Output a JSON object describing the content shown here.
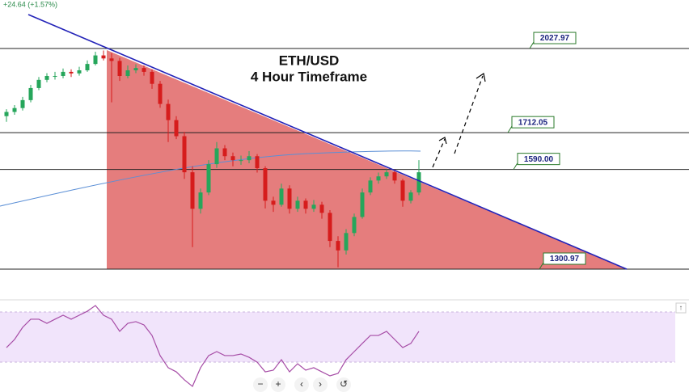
{
  "chart_data": {
    "type": "candlestick",
    "change_label": "+24.64 (+1.57%)",
    "title": "ETH/USD",
    "subtitle": "4 Hour Timeframe",
    "log_scale": true,
    "ylim": [
      1235,
      2236
    ],
    "up_color": "#26a65b",
    "down_color": "#d61c1c",
    "levels": [
      2027.97,
      1712.05,
      {
        "value": 1590,
        "label": "1590.00"
      },
      1300.97
    ],
    "candles": [
      [
        1770,
        1795,
        1750,
        1785
      ],
      [
        1785,
        1810,
        1775,
        1799
      ],
      [
        1799,
        1840,
        1790,
        1828
      ],
      [
        1828,
        1885,
        1820,
        1873
      ],
      [
        1873,
        1915,
        1865,
        1904
      ],
      [
        1904,
        1930,
        1895,
        1919
      ],
      [
        1919,
        1935,
        1905,
        1919
      ],
      [
        1919,
        1948,
        1910,
        1935
      ],
      [
        1935,
        1945,
        1915,
        1929
      ],
      [
        1929,
        1955,
        1920,
        1941
      ],
      [
        1941,
        1980,
        1935,
        1966
      ],
      [
        1966,
        2015,
        1960,
        2000
      ],
      [
        2000,
        2020,
        1980,
        1988
      ],
      [
        1988,
        2010,
        1820,
        1978
      ],
      [
        1978,
        1990,
        1900,
        1919
      ],
      [
        1919,
        1960,
        1910,
        1941
      ],
      [
        1941,
        1965,
        1930,
        1950
      ],
      [
        1950,
        1960,
        1920,
        1935
      ],
      [
        1935,
        1945,
        1870,
        1889
      ],
      [
        1889,
        1900,
        1800,
        1814
      ],
      [
        1814,
        1830,
        1680,
        1756
      ],
      [
        1756,
        1770,
        1690,
        1700
      ],
      [
        1700,
        1715,
        1560,
        1581
      ],
      [
        1581,
        1600,
        1360,
        1469
      ],
      [
        1469,
        1530,
        1455,
        1518
      ],
      [
        1518,
        1620,
        1510,
        1607
      ],
      [
        1607,
        1680,
        1595,
        1659
      ],
      [
        1659,
        1670,
        1620,
        1633
      ],
      [
        1633,
        1645,
        1600,
        1620
      ],
      [
        1620,
        1635,
        1605,
        1620
      ],
      [
        1620,
        1650,
        1610,
        1633
      ],
      [
        1633,
        1640,
        1580,
        1594
      ],
      [
        1594,
        1600,
        1470,
        1493
      ],
      [
        1493,
        1505,
        1460,
        1481
      ],
      [
        1481,
        1545,
        1475,
        1530
      ],
      [
        1530,
        1540,
        1455,
        1469
      ],
      [
        1469,
        1505,
        1460,
        1493
      ],
      [
        1493,
        1500,
        1455,
        1469
      ],
      [
        1469,
        1495,
        1460,
        1481
      ],
      [
        1481,
        1490,
        1440,
        1457
      ],
      [
        1457,
        1465,
        1360,
        1377
      ],
      [
        1377,
        1390,
        1306,
        1351
      ],
      [
        1351,
        1410,
        1340,
        1399
      ],
      [
        1399,
        1455,
        1390,
        1445
      ],
      [
        1445,
        1530,
        1440,
        1518
      ],
      [
        1518,
        1565,
        1510,
        1555
      ],
      [
        1555,
        1580,
        1545,
        1568
      ],
      [
        1568,
        1590,
        1560,
        1581
      ],
      [
        1581,
        1590,
        1545,
        1555
      ],
      [
        1555,
        1560,
        1475,
        1493
      ],
      [
        1493,
        1525,
        1485,
        1518
      ],
      [
        1518,
        1620,
        1510,
        1581
      ]
    ],
    "rsi_ylim": [
      15,
      85
    ],
    "rsi_color": "#a64ca6",
    "rsi": [
      48.3,
      55,
      65,
      71.7,
      71.7,
      68.3,
      71.7,
      75,
      71.7,
      75,
      78.3,
      83,
      75,
      71.7,
      61.7,
      68.3,
      69.7,
      67,
      58.3,
      41.7,
      31.7,
      28.3,
      21.7,
      16.3,
      31.7,
      41.7,
      45,
      41.7,
      41.7,
      43,
      40.3,
      36.3,
      28.3,
      29.7,
      38.3,
      28.3,
      35,
      29.7,
      31.7,
      28.3,
      25,
      27,
      38.3,
      45,
      51.7,
      58.3,
      58.3,
      61.7,
      55,
      48.3,
      51.7,
      61.7
    ],
    "controls": [
      "−",
      "+",
      "‹",
      "›",
      "↺"
    ]
  }
}
